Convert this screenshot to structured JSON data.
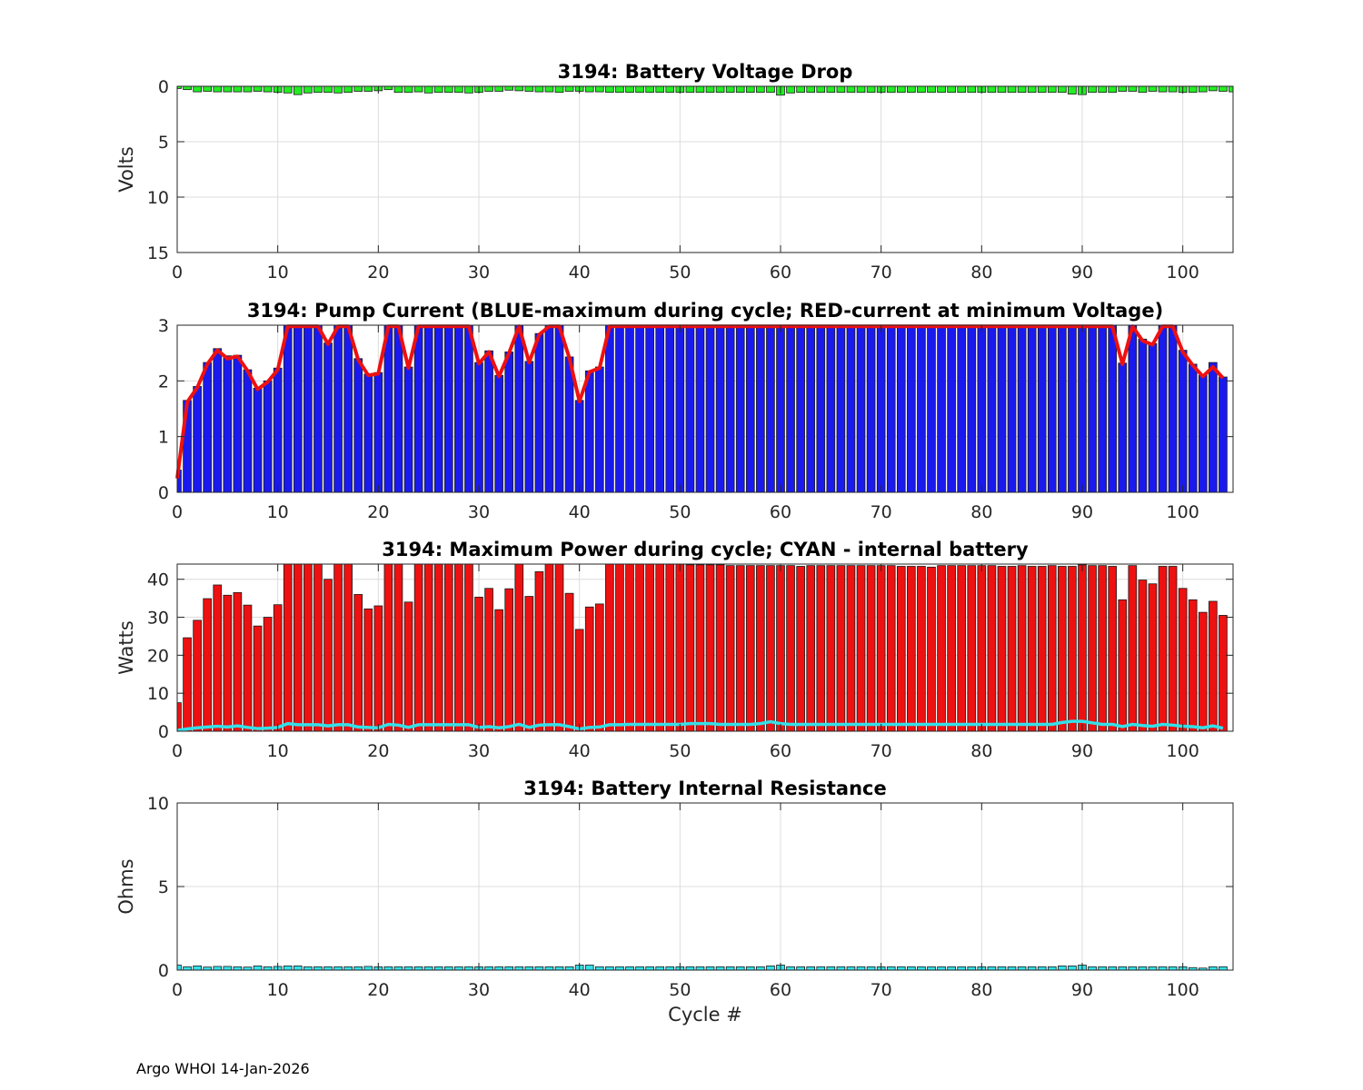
{
  "footer": {
    "text": "Argo WHOI 14-Jan-2026"
  },
  "colors": {
    "voltage": "#22ee22",
    "pump": "#1a1aee",
    "pump_line": "#ee1111",
    "power": "#ee1111",
    "internal": "#33e0e8",
    "resistance": "#33e0e8"
  },
  "chart_data": [
    {
      "type": "bar",
      "title": "3194: Battery Voltage Drop",
      "xlabel": "",
      "ylabel": "Volts",
      "xlim": [
        0,
        105
      ],
      "ylim": [
        0,
        15
      ],
      "y_reversed": true,
      "xticks": [
        "0",
        "10",
        "20",
        "30",
        "40",
        "50",
        "60",
        "70",
        "80",
        "90",
        "100"
      ],
      "yticks": [
        "0",
        "5",
        "10",
        "15"
      ],
      "series": [
        {
          "name": "Voltage drop",
          "color": "#22ee22",
          "values": [
            0.2,
            0.3,
            0.5,
            0.45,
            0.5,
            0.5,
            0.5,
            0.5,
            0.45,
            0.5,
            0.55,
            0.6,
            0.75,
            0.6,
            0.55,
            0.55,
            0.6,
            0.55,
            0.45,
            0.45,
            0.4,
            0.3,
            0.55,
            0.55,
            0.5,
            0.6,
            0.55,
            0.55,
            0.55,
            0.6,
            0.55,
            0.45,
            0.45,
            0.35,
            0.4,
            0.45,
            0.5,
            0.5,
            0.55,
            0.45,
            0.45,
            0.5,
            0.5,
            0.55,
            0.55,
            0.55,
            0.55,
            0.55,
            0.55,
            0.55,
            0.55,
            0.55,
            0.55,
            0.55,
            0.55,
            0.55,
            0.55,
            0.55,
            0.55,
            0.55,
            0.8,
            0.6,
            0.55,
            0.55,
            0.55,
            0.55,
            0.55,
            0.55,
            0.55,
            0.55,
            0.55,
            0.55,
            0.55,
            0.55,
            0.55,
            0.55,
            0.55,
            0.55,
            0.55,
            0.55,
            0.55,
            0.55,
            0.55,
            0.55,
            0.55,
            0.55,
            0.55,
            0.55,
            0.55,
            0.7,
            0.75,
            0.55,
            0.55,
            0.55,
            0.45,
            0.45,
            0.55,
            0.45,
            0.5,
            0.5,
            0.55,
            0.55,
            0.5,
            0.4,
            0.45,
            0.5
          ]
        }
      ]
    },
    {
      "type": "bar",
      "title": "3194: Pump Current (BLUE-maximum during cycle; RED-current at minimum Voltage)",
      "xlabel": "",
      "ylabel": "",
      "xlim": [
        0,
        105
      ],
      "ylim": [
        0,
        3
      ],
      "xticks": [
        "0",
        "10",
        "20",
        "30",
        "40",
        "50",
        "60",
        "70",
        "80",
        "90",
        "100"
      ],
      "yticks": [
        "0",
        "1",
        "2",
        "3"
      ],
      "series": [
        {
          "name": "BLUE-maximum during cycle",
          "kind": "bar",
          "color": "#1a1aee",
          "values": [
            0.4,
            1.65,
            1.9,
            2.33,
            2.58,
            2.45,
            2.46,
            2.2,
            1.87,
            2.0,
            2.23,
            3.0,
            3.0,
            3.0,
            3.0,
            2.68,
            3.0,
            3.0,
            2.4,
            2.12,
            2.15,
            3.0,
            3.0,
            2.25,
            3.0,
            3.0,
            3.0,
            3.0,
            3.0,
            3.0,
            2.33,
            2.54,
            2.1,
            2.52,
            3.0,
            2.35,
            2.85,
            3.0,
            3.0,
            2.43,
            1.65,
            2.18,
            2.25,
            3.0,
            3.0,
            3.0,
            3.0,
            3.0,
            3.0,
            3.0,
            3.0,
            3.0,
            3.0,
            3.0,
            3.0,
            3.0,
            3.0,
            3.0,
            3.0,
            3.0,
            3.0,
            3.0,
            3.0,
            3.0,
            3.0,
            3.0,
            3.0,
            3.0,
            3.0,
            3.0,
            3.0,
            3.0,
            3.0,
            3.0,
            3.0,
            3.0,
            3.0,
            3.0,
            3.0,
            3.0,
            3.0,
            3.0,
            3.0,
            3.0,
            3.0,
            3.0,
            3.0,
            3.0,
            3.0,
            3.0,
            3.0,
            3.0,
            3.0,
            3.0,
            2.32,
            3.0,
            2.75,
            2.67,
            3.0,
            3.0,
            2.55,
            2.3,
            2.1,
            2.33,
            2.07
          ]
        },
        {
          "name": "RED-current at minimum Voltage",
          "kind": "line",
          "color": "#ee1111",
          "values": [
            0.25,
            1.62,
            1.88,
            2.3,
            2.55,
            2.4,
            2.44,
            2.18,
            1.85,
            1.98,
            2.2,
            2.98,
            2.98,
            2.98,
            2.98,
            2.66,
            2.98,
            2.98,
            2.38,
            2.1,
            2.13,
            2.98,
            2.98,
            2.23,
            2.98,
            2.98,
            2.98,
            2.98,
            2.98,
            2.98,
            2.31,
            2.52,
            2.08,
            2.5,
            2.98,
            2.33,
            2.83,
            2.98,
            2.98,
            2.41,
            1.63,
            2.16,
            2.23,
            2.98,
            2.98,
            2.98,
            2.98,
            2.98,
            2.98,
            2.98,
            2.98,
            2.98,
            2.98,
            2.98,
            2.98,
            2.98,
            2.98,
            2.98,
            2.98,
            2.98,
            2.98,
            2.98,
            2.98,
            2.98,
            2.98,
            2.98,
            2.98,
            2.98,
            2.98,
            2.98,
            2.98,
            2.98,
            2.98,
            2.98,
            2.98,
            2.98,
            2.98,
            2.98,
            2.98,
            2.98,
            2.98,
            2.98,
            2.98,
            2.98,
            2.98,
            2.98,
            2.98,
            2.98,
            2.98,
            2.98,
            2.98,
            2.98,
            2.98,
            2.98,
            2.3,
            2.98,
            2.72,
            2.65,
            2.98,
            2.98,
            2.52,
            2.28,
            2.08,
            2.25,
            2.05
          ]
        }
      ]
    },
    {
      "type": "bar",
      "title": "3194: Maximum Power during cycle; CYAN - internal battery",
      "xlabel": "",
      "ylabel": "Watts",
      "xlim": [
        0,
        105
      ],
      "ylim": [
        0,
        44
      ],
      "xticks": [
        "0",
        "10",
        "20",
        "30",
        "40",
        "50",
        "60",
        "70",
        "80",
        "90",
        "100"
      ],
      "yticks": [
        "0",
        "10",
        "20",
        "30",
        "40"
      ],
      "series": [
        {
          "name": "Maximum Power",
          "kind": "bar",
          "color": "#ee1111",
          "values": [
            7.5,
            24.6,
            29.2,
            34.9,
            38.5,
            35.8,
            36.5,
            33.2,
            27.7,
            30.0,
            33.3,
            44,
            44,
            44,
            44,
            40.0,
            44,
            44,
            36.0,
            32.2,
            33.0,
            44,
            44,
            34.0,
            44,
            44,
            44,
            44,
            44,
            44,
            35.3,
            37.6,
            32.0,
            37.5,
            44,
            35.5,
            42.0,
            44,
            44,
            36.3,
            26.8,
            32.7,
            33.5,
            44,
            44,
            44,
            44,
            44,
            44,
            44,
            44,
            43.8,
            43.8,
            43.8,
            43.8,
            43.6,
            43.6,
            43.6,
            43.6,
            43.6,
            43.6,
            43.6,
            43.4,
            43.6,
            43.6,
            43.6,
            43.6,
            43.6,
            43.6,
            43.6,
            43.6,
            43.6,
            43.4,
            43.4,
            43.4,
            43.2,
            43.6,
            43.6,
            43.6,
            43.6,
            43.6,
            43.6,
            43.4,
            43.4,
            43.6,
            43.4,
            43.4,
            43.6,
            43.4,
            43.4,
            43.8,
            43.6,
            43.6,
            43.4,
            34.6,
            43.6,
            39.8,
            38.8,
            43.4,
            43.4,
            37.6,
            34.6,
            31.3,
            34.2,
            30.5
          ]
        },
        {
          "name": "CYAN - internal battery",
          "kind": "line",
          "color": "#33e0e8",
          "values": [
            0.2,
            0.6,
            0.9,
            1.1,
            1.3,
            1.1,
            1.4,
            1.0,
            0.7,
            0.8,
            1.0,
            2.0,
            1.7,
            1.7,
            1.7,
            1.4,
            1.7,
            1.7,
            1.1,
            1.0,
            0.9,
            1.8,
            1.6,
            1.0,
            1.7,
            1.7,
            1.7,
            1.7,
            1.7,
            1.7,
            1.0,
            1.2,
            0.9,
            1.2,
            1.8,
            1.0,
            1.6,
            1.7,
            1.7,
            1.2,
            0.6,
            1.0,
            1.1,
            1.7,
            1.7,
            1.8,
            1.8,
            1.8,
            1.8,
            1.8,
            1.8,
            2.0,
            2.0,
            2.0,
            1.8,
            1.8,
            1.8,
            1.8,
            2.0,
            2.5,
            2.0,
            1.8,
            1.8,
            1.8,
            1.8,
            1.8,
            1.8,
            1.8,
            1.8,
            1.8,
            1.8,
            1.8,
            1.8,
            1.8,
            1.8,
            1.8,
            1.8,
            1.8,
            1.8,
            1.8,
            1.8,
            1.8,
            1.8,
            1.8,
            1.8,
            1.8,
            1.8,
            1.8,
            2.3,
            2.6,
            2.6,
            2.2,
            1.8,
            1.8,
            1.2,
            1.8,
            1.5,
            1.3,
            1.8,
            1.6,
            1.3,
            1.2,
            0.9,
            1.4,
            0.8
          ]
        }
      ]
    },
    {
      "type": "bar",
      "title": "3194: Battery Internal Resistance",
      "xlabel": "Cycle #",
      "ylabel": "Ohms",
      "xlim": [
        0,
        105
      ],
      "ylim": [
        0,
        10
      ],
      "xticks": [
        "0",
        "10",
        "20",
        "30",
        "40",
        "50",
        "60",
        "70",
        "80",
        "90",
        "100"
      ],
      "yticks": [
        "0",
        "5",
        "10"
      ],
      "series": [
        {
          "name": "Internal Resistance",
          "color": "#33e0e8",
          "values": [
            0.3,
            0.2,
            0.25,
            0.18,
            0.22,
            0.22,
            0.2,
            0.18,
            0.25,
            0.2,
            0.22,
            0.25,
            0.25,
            0.2,
            0.2,
            0.2,
            0.2,
            0.2,
            0.2,
            0.22,
            0.2,
            0.2,
            0.2,
            0.2,
            0.2,
            0.2,
            0.2,
            0.2,
            0.2,
            0.2,
            0.2,
            0.2,
            0.2,
            0.2,
            0.2,
            0.2,
            0.2,
            0.2,
            0.2,
            0.2,
            0.3,
            0.3,
            0.2,
            0.2,
            0.2,
            0.2,
            0.2,
            0.2,
            0.2,
            0.2,
            0.2,
            0.2,
            0.2,
            0.2,
            0.2,
            0.2,
            0.2,
            0.2,
            0.2,
            0.25,
            0.3,
            0.2,
            0.2,
            0.2,
            0.2,
            0.2,
            0.2,
            0.2,
            0.2,
            0.2,
            0.2,
            0.2,
            0.2,
            0.2,
            0.2,
            0.2,
            0.2,
            0.2,
            0.2,
            0.2,
            0.2,
            0.2,
            0.2,
            0.2,
            0.2,
            0.2,
            0.2,
            0.2,
            0.25,
            0.25,
            0.3,
            0.2,
            0.2,
            0.2,
            0.2,
            0.2,
            0.2,
            0.2,
            0.2,
            0.2,
            0.2,
            0.15,
            0.12,
            0.2,
            0.2
          ]
        }
      ]
    }
  ]
}
